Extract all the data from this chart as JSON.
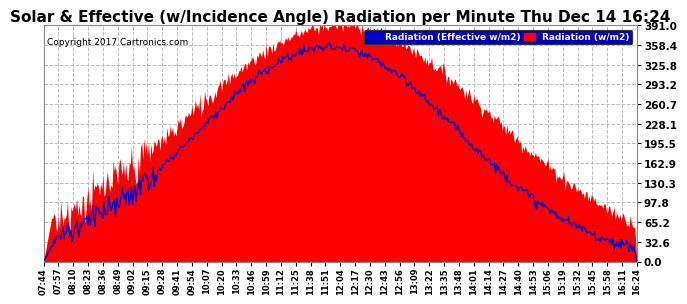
{
  "title": "Solar & Effective (w/Incidence Angle) Radiation per Minute Thu Dec 14 16:24",
  "copyright": "Copyright 2017 Cartronics.com",
  "legend_effective": "Radiation (Effective w/m2)",
  "legend_radiation": "Radiation (w/m2)",
  "yticks": [
    0.0,
    32.6,
    65.2,
    97.8,
    130.3,
    162.9,
    195.5,
    228.1,
    260.7,
    293.2,
    325.8,
    358.4,
    391.0
  ],
  "ymax": 391.0,
  "background_color": "#ffffff",
  "plot_bg_color": "#ffffff",
  "grid_color": "#bbbbbb",
  "fill_color": "#ff0000",
  "line_color": "#0000cc",
  "title_fontsize": 11,
  "xtick_labels": [
    "07:44",
    "07:57",
    "08:10",
    "08:23",
    "08:36",
    "08:49",
    "09:02",
    "09:15",
    "09:28",
    "09:41",
    "09:54",
    "10:07",
    "10:20",
    "10:33",
    "10:46",
    "10:59",
    "11:12",
    "11:25",
    "11:38",
    "11:51",
    "12:04",
    "12:17",
    "12:30",
    "12:43",
    "12:56",
    "13:09",
    "13:22",
    "13:35",
    "13:48",
    "14:01",
    "14:14",
    "14:27",
    "14:40",
    "14:53",
    "15:06",
    "15:19",
    "15:32",
    "15:45",
    "15:58",
    "16:11",
    "16:24"
  ]
}
